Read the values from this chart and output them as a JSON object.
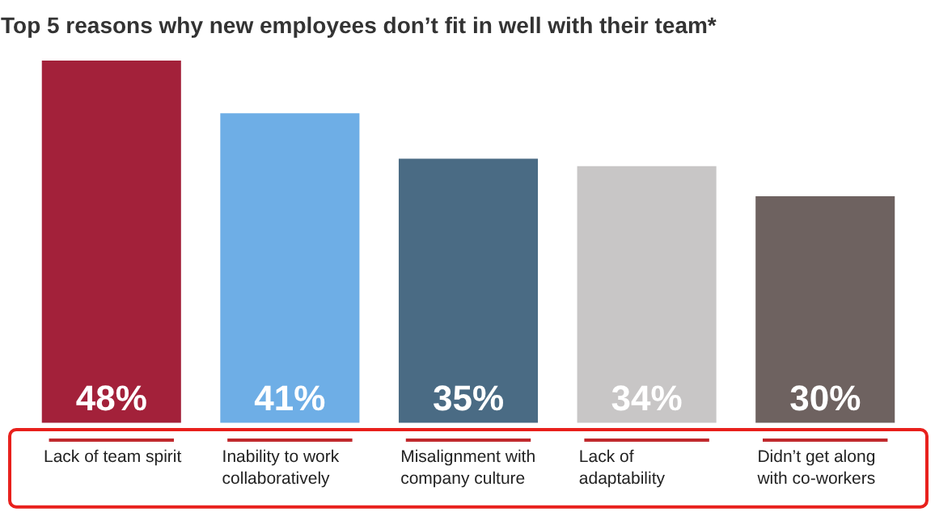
{
  "chart_data": {
    "type": "bar",
    "title": "Top 5 reasons why new employees don’t fit in well with their team*",
    "categories": [
      "Lack of team spirit",
      "Inability to work collaboratively",
      "Misalignment with company culture",
      "Lack of adaptability",
      "Didn’t get along with co-workers"
    ],
    "values": [
      48,
      41,
      35,
      34,
      30
    ],
    "colors": [
      "#a3213a",
      "#6eaee6",
      "#4a6b84",
      "#c8c6c6",
      "#6e6260"
    ],
    "value_labels": [
      "48%",
      "41%",
      "35%",
      "34%",
      "30%"
    ]
  }
}
